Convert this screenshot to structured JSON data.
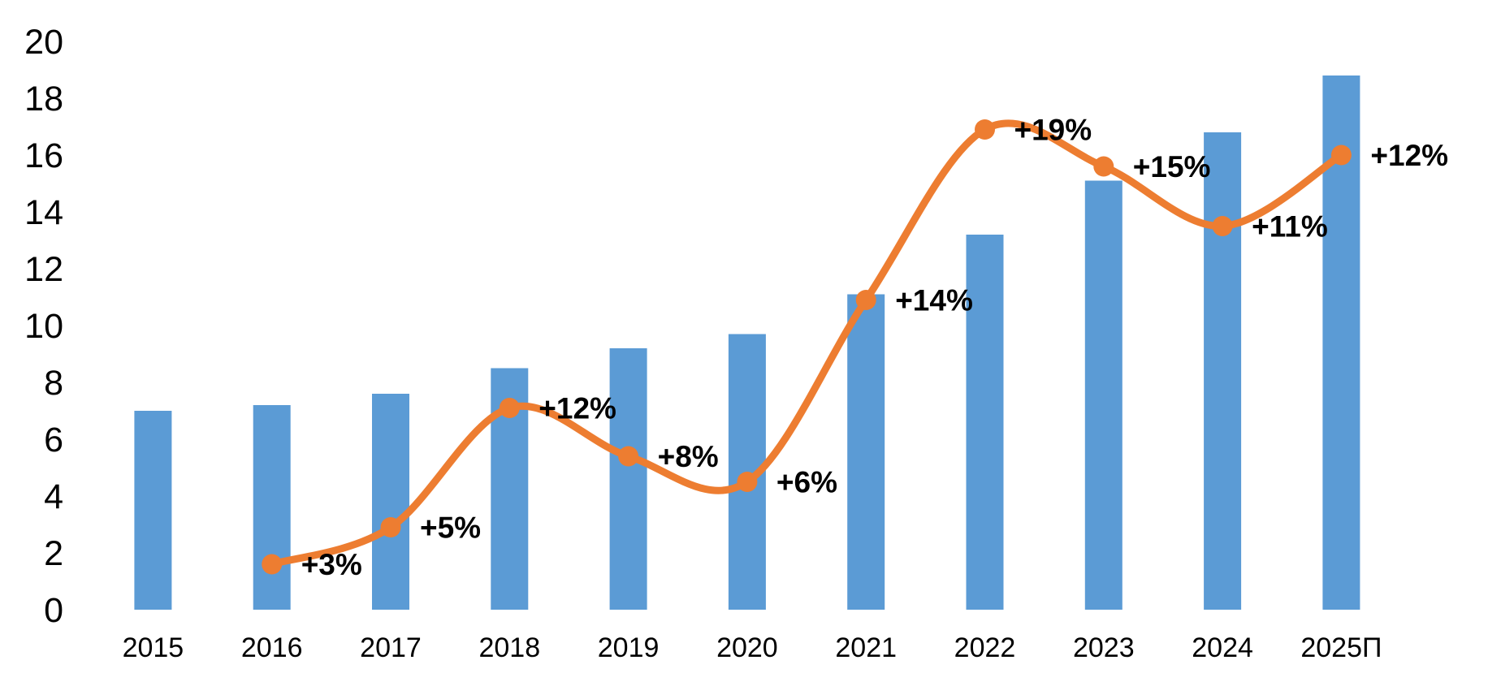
{
  "page": {
    "background": "#FFFFFF"
  },
  "chart_data": {
    "type": "bar",
    "subtype": "bar-line-combo",
    "title": "",
    "xlabel": "",
    "ylabel": "",
    "grid": false,
    "legend": false,
    "text_color": "#000000",
    "ylim": [
      0,
      20
    ],
    "y_ticks": [
      0,
      2,
      4,
      6,
      8,
      10,
      12,
      14,
      16,
      18,
      20
    ],
    "categories": [
      "2015",
      "2016",
      "2017",
      "2018",
      "2019",
      "2020",
      "2021",
      "2022",
      "2023",
      "2024",
      "2025П"
    ],
    "series": [
      {
        "name": "bars",
        "type": "bar",
        "color": "#5B9BD5",
        "values": [
          7.0,
          7.2,
          7.6,
          8.5,
          9.2,
          9.7,
          11.1,
          13.2,
          15.1,
          16.8,
          18.8
        ]
      },
      {
        "name": "growth-line",
        "type": "line",
        "color": "#ED7D31",
        "points": [
          {
            "category": "2016",
            "label": "+3%",
            "y_left_axis": 1.6
          },
          {
            "category": "2017",
            "label": "+5%",
            "y_left_axis": 2.9
          },
          {
            "category": "2018",
            "label": "+12%",
            "y_left_axis": 7.1
          },
          {
            "category": "2019",
            "label": "+8%",
            "y_left_axis": 5.4
          },
          {
            "category": "2020",
            "label": "+6%",
            "y_left_axis": 4.5
          },
          {
            "category": "2021",
            "label": "+14%",
            "y_left_axis": 10.9
          },
          {
            "category": "2022",
            "label": "+19%",
            "y_left_axis": 16.9
          },
          {
            "category": "2023",
            "label": "+15%",
            "y_left_axis": 15.6
          },
          {
            "category": "2024",
            "label": "+11%",
            "y_left_axis": 13.5
          },
          {
            "category": "2025П",
            "label": "+12%",
            "y_left_axis": 16.0
          }
        ]
      }
    ]
  }
}
